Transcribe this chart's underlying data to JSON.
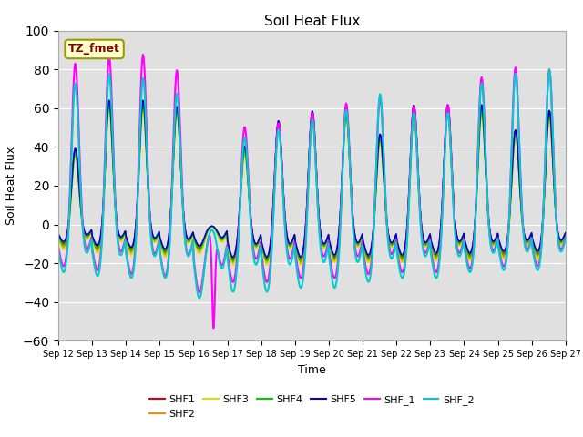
{
  "title": "Soil Heat Flux",
  "xlabel": "Time",
  "ylabel": "Soil Heat Flux",
  "ylim": [
    -60,
    100
  ],
  "yticks": [
    -60,
    -40,
    -20,
    0,
    20,
    40,
    60,
    80,
    100
  ],
  "n_days": 15,
  "annotation_text": "TZ_fmet",
  "annotation_box_color": "#FFFFCC",
  "annotation_text_color": "#800000",
  "annotation_edge_color": "#999900",
  "background_color": "#E0E0E0",
  "series_colors": {
    "SHF1": "#DD0000",
    "SHF2": "#FF8800",
    "SHF3": "#DDDD00",
    "SHF4": "#00CC00",
    "SHF5": "#0000CC",
    "SHF_1": "#FF00FF",
    "SHF_2": "#00CCCC"
  },
  "day_peak_amps": {
    "SHF1": [
      40,
      65,
      65,
      62,
      0,
      42,
      55,
      60,
      60,
      48,
      63,
      63,
      63,
      50,
      60
    ],
    "SHF2": [
      38,
      62,
      62,
      60,
      0,
      40,
      53,
      58,
      58,
      46,
      60,
      60,
      60,
      48,
      58
    ],
    "SHF3": [
      36,
      60,
      60,
      58,
      0,
      38,
      51,
      56,
      56,
      44,
      58,
      58,
      58,
      46,
      56
    ],
    "SHF4": [
      38,
      63,
      63,
      60,
      0,
      40,
      53,
      58,
      58,
      46,
      60,
      60,
      60,
      48,
      58
    ],
    "SHF5": [
      40,
      65,
      65,
      62,
      0,
      42,
      55,
      60,
      60,
      48,
      63,
      63,
      63,
      50,
      60
    ],
    "SHF_1": [
      85,
      89,
      90,
      82,
      -50,
      53,
      55,
      60,
      65,
      68,
      63,
      64,
      78,
      83,
      82
    ],
    "SHF_2": [
      75,
      80,
      78,
      70,
      0,
      48,
      52,
      57,
      62,
      70,
      60,
      60,
      75,
      80,
      82
    ]
  },
  "day_trough_amps": {
    "SHF1": [
      -10,
      -12,
      -13,
      -14,
      -12,
      -18,
      -18,
      -18,
      -17,
      -17,
      -17,
      -16,
      -16,
      -15,
      -15
    ],
    "SHF2": [
      -12,
      -14,
      -15,
      -16,
      -14,
      -20,
      -20,
      -20,
      -19,
      -19,
      -19,
      -18,
      -18,
      -17,
      -17
    ],
    "SHF3": [
      -13,
      -15,
      -16,
      -17,
      -15,
      -21,
      -21,
      -21,
      -20,
      -20,
      -20,
      -19,
      -19,
      -18,
      -18
    ],
    "SHF4": [
      -11,
      -13,
      -14,
      -15,
      -13,
      -19,
      -19,
      -19,
      -18,
      -18,
      -18,
      -17,
      -17,
      -16,
      -16
    ],
    "SHF5": [
      -9,
      -11,
      -12,
      -13,
      -11,
      -17,
      -17,
      -17,
      -16,
      -16,
      -16,
      -15,
      -15,
      -14,
      -14
    ],
    "SHF_1": [
      -22,
      -24,
      -26,
      -27,
      -35,
      -30,
      -30,
      -28,
      -28,
      -26,
      -25,
      -25,
      -23,
      -22,
      -22
    ],
    "SHF_2": [
      -25,
      -27,
      -28,
      -28,
      -38,
      -35,
      -35,
      -33,
      -33,
      -30,
      -28,
      -28,
      -25,
      -24,
      -24
    ]
  }
}
